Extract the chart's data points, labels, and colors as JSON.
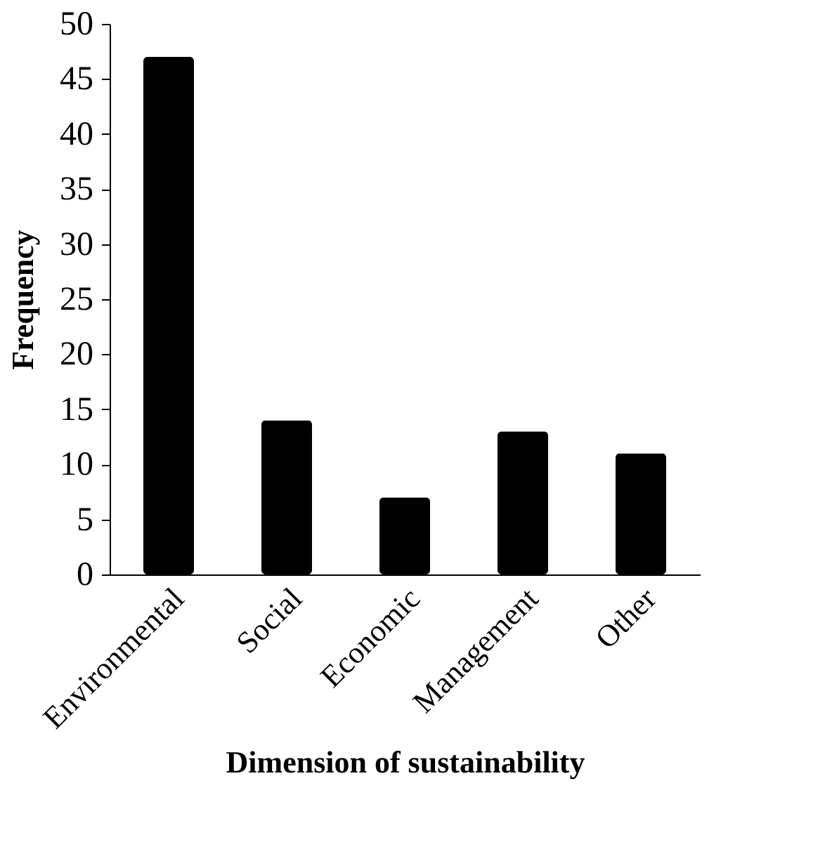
{
  "chart_data": {
    "type": "bar",
    "xlabel": "Dimension of sustainability",
    "ylabel": "Frequency",
    "categories": [
      "Environmental",
      "Social",
      "Economic",
      "Management",
      "Other"
    ],
    "values": [
      47,
      14,
      7,
      13,
      11
    ],
    "color": "#000000",
    "ylim": [
      0,
      50
    ],
    "yticks": [
      0,
      5,
      10,
      15,
      20,
      25,
      30,
      35,
      40,
      45,
      50
    ],
    "grid": false
  }
}
